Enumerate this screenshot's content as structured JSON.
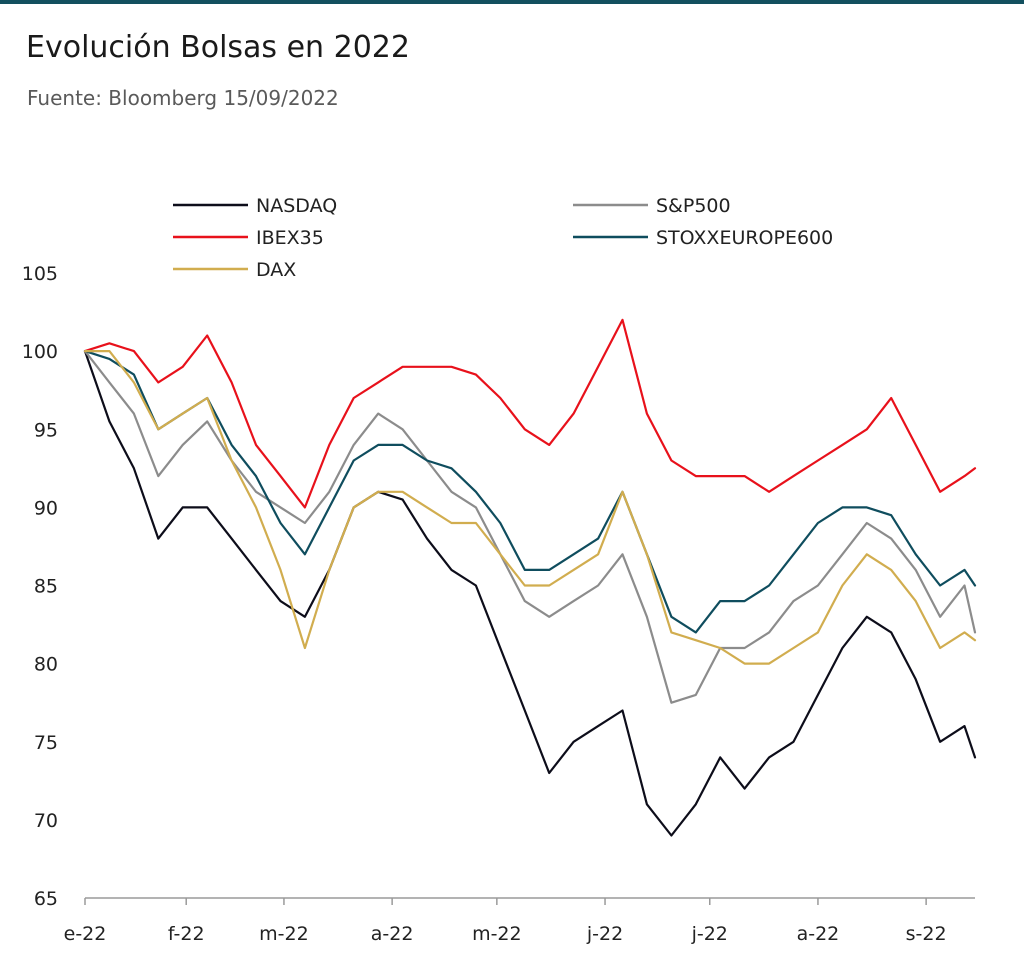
{
  "header": {
    "title": "Evolución Bolsas en 2022",
    "subtitle": "Fuente: Bloomberg 15/09/2022"
  },
  "chart_data": {
    "type": "line",
    "title": "Evolución Bolsas en 2022",
    "subtitle": "Fuente: Bloomberg 15/09/2022",
    "xlabel": "",
    "ylabel": "",
    "ylim": [
      65,
      105
    ],
    "y_ticks": [
      65,
      70,
      75,
      80,
      85,
      90,
      95,
      100,
      105
    ],
    "x_tick_labels": [
      "e-22",
      "f-22",
      "m-22",
      "a-22",
      "m-22",
      "j-22",
      "j-22",
      "a-22",
      "s-22"
    ],
    "x_range": [
      "2022-01-03",
      "2022-09-15"
    ],
    "grid": false,
    "legend_position": "top",
    "x": [
      "2022-01-03",
      "2022-01-10",
      "2022-01-17",
      "2022-01-24",
      "2022-01-31",
      "2022-02-07",
      "2022-02-14",
      "2022-02-21",
      "2022-02-28",
      "2022-03-07",
      "2022-03-14",
      "2022-03-21",
      "2022-03-28",
      "2022-04-04",
      "2022-04-11",
      "2022-04-18",
      "2022-04-25",
      "2022-05-02",
      "2022-05-09",
      "2022-05-16",
      "2022-05-23",
      "2022-05-30",
      "2022-06-06",
      "2022-06-13",
      "2022-06-20",
      "2022-06-27",
      "2022-07-04",
      "2022-07-11",
      "2022-07-18",
      "2022-07-25",
      "2022-08-01",
      "2022-08-08",
      "2022-08-15",
      "2022-08-22",
      "2022-08-29",
      "2022-09-05",
      "2022-09-12",
      "2022-09-15"
    ],
    "series": [
      {
        "name": "NASDAQ",
        "color": "#0d0d1a",
        "values": [
          100,
          95.5,
          92.5,
          88,
          90,
          90,
          88,
          86,
          84,
          83,
          86,
          90,
          91,
          90.5,
          88,
          86,
          85,
          81,
          77,
          73,
          75,
          76,
          77,
          71,
          69,
          71,
          74,
          72,
          74,
          75,
          78,
          81,
          83,
          82,
          79,
          75,
          76,
          74
        ]
      },
      {
        "name": "S&P500",
        "color": "#8c8c8c",
        "values": [
          100,
          98,
          96,
          92,
          94,
          95.5,
          93,
          91,
          90,
          89,
          91,
          94,
          96,
          95,
          93,
          91,
          90,
          87,
          84,
          83,
          84,
          85,
          87,
          83,
          77.5,
          78,
          81,
          81,
          82,
          84,
          85,
          87,
          89,
          88,
          86,
          83,
          85,
          82
        ]
      },
      {
        "name": "IBEX35",
        "color": "#e8111b",
        "values": [
          100,
          100.5,
          100,
          98,
          99,
          101,
          98,
          94,
          92,
          90,
          94,
          97,
          98,
          99,
          99,
          99,
          98.5,
          97,
          95,
          94,
          96,
          99,
          102,
          96,
          93,
          92,
          92,
          92,
          91,
          92,
          93,
          94,
          95,
          97,
          94,
          91,
          92,
          92.5
        ]
      },
      {
        "name": "STOXXEUROPE600",
        "color": "#0f4d5e",
        "values": [
          100,
          99.5,
          98.5,
          95,
          96,
          97,
          94,
          92,
          89,
          87,
          90,
          93,
          94,
          94,
          93,
          92.5,
          91,
          89,
          86,
          86,
          87,
          88,
          91,
          87,
          83,
          82,
          84,
          84,
          85,
          87,
          89,
          90,
          90,
          89.5,
          87,
          85,
          86,
          85
        ]
      },
      {
        "name": "DAX",
        "color": "#d1ad4f",
        "values": [
          100,
          100,
          98,
          95,
          96,
          97,
          93,
          90,
          86,
          81,
          86,
          90,
          91,
          91,
          90,
          89,
          89,
          87,
          85,
          85,
          86,
          87,
          91,
          87,
          82,
          81.5,
          81,
          80,
          80,
          81,
          82,
          85,
          87,
          86,
          84,
          81,
          82,
          81.5
        ]
      }
    ]
  }
}
